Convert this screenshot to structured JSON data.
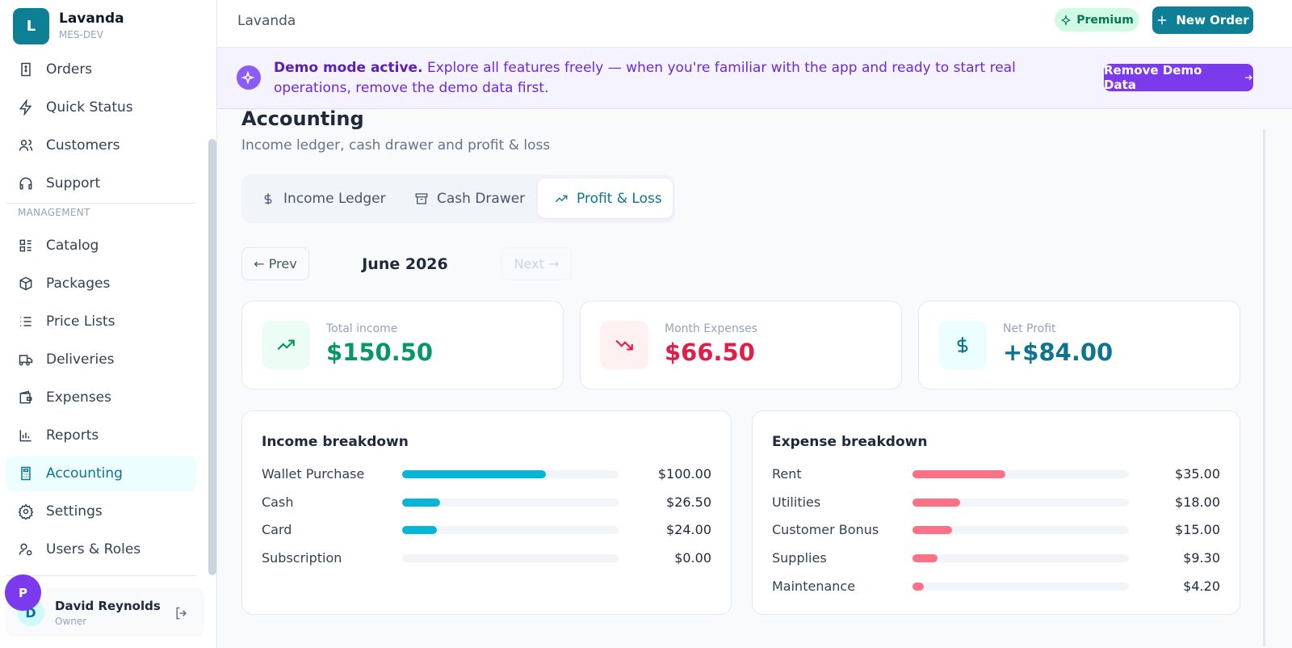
{
  "sidebar": {
    "brand": {
      "initial": "L",
      "name": "Lavanda",
      "env": "MES-DEV"
    },
    "nav_top": [
      "Orders",
      "Quick Status",
      "Customers",
      "Support"
    ],
    "section": "MANAGEMENT",
    "nav": [
      "Catalog",
      "Packages",
      "Price Lists",
      "Deliveries",
      "Expenses",
      "Reports",
      "Accounting",
      "Settings",
      "Users & Roles"
    ],
    "user": {
      "avatar": "D",
      "name": "David Reynolds",
      "role": "Owner"
    },
    "floating_avatar": "P"
  },
  "header": {
    "title": "Lavanda",
    "premium": "Premium",
    "new_order": "New Order"
  },
  "banner": {
    "strong": "Demo mode active.",
    "text": "Explore all features freely — when you're familiar with the app and ready to start real operations, remove the demo data first.",
    "button": "Remove Demo Data"
  },
  "page": {
    "title": "Accounting",
    "subtitle": "Income ledger, cash drawer and profit & loss",
    "tabs": [
      "Income Ledger",
      "Cash Drawer",
      "Profit & Loss"
    ]
  },
  "period": {
    "prev": "← Prev",
    "label": "June 2026",
    "next": "Next →"
  },
  "kpis": [
    {
      "label": "Total income",
      "value": "$150.50"
    },
    {
      "label": "Month Expenses",
      "value": "$66.50"
    },
    {
      "label": "Net Profit",
      "value": "+$84.00"
    }
  ],
  "income_breakdown": {
    "title": "Income breakdown",
    "categories": [
      "Wallet Purchase",
      "Cash",
      "Card",
      "Subscription"
    ],
    "values": [
      100,
      26.5,
      24,
      0
    ],
    "value_labels": [
      "$100.00",
      "$26.50",
      "$24.00",
      "$0.00"
    ],
    "color": "#06b6d4"
  },
  "expense_breakdown": {
    "title": "Expense breakdown",
    "categories": [
      "Rent",
      "Utilities",
      "Customer Bonus",
      "Supplies",
      "Maintenance"
    ],
    "values": [
      35,
      18,
      15,
      9.3,
      4.2
    ],
    "value_labels": [
      "$35.00",
      "$18.00",
      "$15.00",
      "$9.30",
      "$4.20"
    ],
    "color": "#fb7185"
  }
}
